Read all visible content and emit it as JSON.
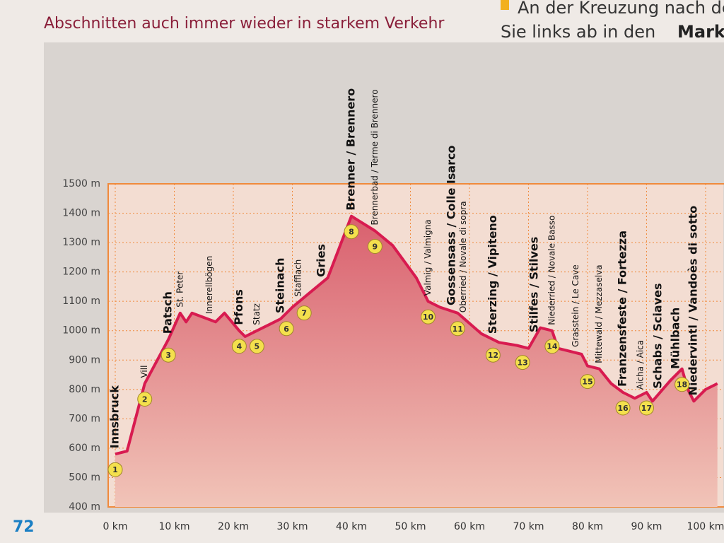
{
  "header": {
    "left": "Abschnitten auch immer wieder in starkem Verkehr",
    "right_top": "An der Kreuzung nach de",
    "right": "Sie links ab in den",
    "right_bold": "Markt"
  },
  "page_number": "72",
  "chart_data": {
    "type": "line",
    "x": [
      0,
      2,
      5,
      9,
      11,
      12,
      13,
      17,
      18.5,
      21,
      22,
      25,
      28,
      30,
      33,
      36,
      40,
      44,
      47,
      51,
      53,
      55,
      58,
      62,
      65,
      68,
      70,
      72,
      74,
      75,
      77,
      79,
      80,
      82,
      84,
      86,
      88,
      90,
      91,
      94,
      96,
      97,
      98,
      100,
      102
    ],
    "values": [
      580,
      590,
      820,
      970,
      1060,
      1030,
      1060,
      1030,
      1060,
      1000,
      980,
      1010,
      1040,
      1080,
      1130,
      1180,
      1390,
      1340,
      1290,
      1180,
      1100,
      1080,
      1060,
      990,
      960,
      950,
      940,
      1010,
      1000,
      940,
      930,
      920,
      880,
      870,
      820,
      790,
      770,
      790,
      760,
      830,
      870,
      800,
      760,
      800,
      820
    ],
    "color": "#d81b50",
    "xlim": [
      0,
      103
    ],
    "ylim": [
      400,
      1500
    ],
    "xticks": [
      {
        "value": 0,
        "label": "0 km"
      },
      {
        "value": 10,
        "label": "10 km"
      },
      {
        "value": 20,
        "label": "20 km"
      },
      {
        "value": 30,
        "label": "30 km"
      },
      {
        "value": 40,
        "label": "40 km"
      },
      {
        "value": 50,
        "label": "50 km"
      },
      {
        "value": 60,
        "label": "60 km"
      },
      {
        "value": 70,
        "label": "70 km"
      },
      {
        "value": 80,
        "label": "80 km"
      },
      {
        "value": 90,
        "label": "90 km"
      },
      {
        "value": 100,
        "label": "100 km"
      }
    ],
    "yticks": [
      {
        "value": 400,
        "label": "400 m"
      },
      {
        "value": 500,
        "label": "500 m"
      },
      {
        "value": 600,
        "label": "600 m"
      },
      {
        "value": 700,
        "label": "700 m"
      },
      {
        "value": 800,
        "label": "800 m"
      },
      {
        "value": 900,
        "label": "900 m"
      },
      {
        "value": 1000,
        "label": "1000 m"
      },
      {
        "value": 1100,
        "label": "1100 m"
      },
      {
        "value": 1200,
        "label": "1200 m"
      },
      {
        "value": 1300,
        "label": "1300 m"
      },
      {
        "value": 1400,
        "label": "1400 m"
      },
      {
        "value": 1500,
        "label": "1500 m"
      }
    ],
    "grid": true,
    "places": [
      {
        "name": "Innsbruck",
        "km": 0,
        "bold": true
      },
      {
        "name": "Vill",
        "km": 5,
        "bold": false
      },
      {
        "name": "Patsch",
        "km": 9,
        "bold": true
      },
      {
        "name": "St. Peter",
        "km": 11,
        "bold": false
      },
      {
        "name": "Innerellbögen",
        "km": 16,
        "bold": false
      },
      {
        "name": "Pfons",
        "km": 21,
        "bold": true
      },
      {
        "name": "Statz",
        "km": 24,
        "bold": false
      },
      {
        "name": "Steinach",
        "km": 28,
        "bold": true
      },
      {
        "name": "Stafflach",
        "km": 31,
        "bold": false
      },
      {
        "name": "Gries",
        "km": 35,
        "bold": true
      },
      {
        "name": "Brenner / Brennero",
        "km": 40,
        "bold": true
      },
      {
        "name": "Brennerbad / Terme di Brennero",
        "km": 44,
        "bold": false
      },
      {
        "name": "Valmig / Valmigna",
        "km": 53,
        "bold": false
      },
      {
        "name": "Gossensass / Colle Isarco",
        "km": 57,
        "bold": true
      },
      {
        "name": "Oberried / Novale di sopra",
        "km": 59,
        "bold": false
      },
      {
        "name": "Sterzing / Vipiteno",
        "km": 64,
        "bold": true
      },
      {
        "name": "Stilfes / Stilves",
        "km": 71,
        "bold": true
      },
      {
        "name": "Niederried / Novale Basso",
        "km": 74,
        "bold": false
      },
      {
        "name": "Grasstein / Le Cave",
        "km": 78,
        "bold": false
      },
      {
        "name": "Mittewald / Mezzaselva",
        "km": 82,
        "bold": false
      },
      {
        "name": "Franzensfeste / Fortezza",
        "km": 86,
        "bold": true
      },
      {
        "name": "Aicha / Aica",
        "km": 89,
        "bold": false
      },
      {
        "name": "Schabs / Sciaves",
        "km": 92,
        "bold": true
      },
      {
        "name": "Mühlbach",
        "km": 95,
        "bold": true
      },
      {
        "name": "Niedervintl / Vandoès di sotto",
        "km": 98,
        "bold": true
      }
    ],
    "markers": [
      {
        "label": "1",
        "km": 0
      },
      {
        "label": "2",
        "km": 5
      },
      {
        "label": "3",
        "km": 9
      },
      {
        "label": "4",
        "km": 21
      },
      {
        "label": "5",
        "km": 24
      },
      {
        "label": "6",
        "km": 29
      },
      {
        "label": "7",
        "km": 32
      },
      {
        "label": "8",
        "km": 40
      },
      {
        "label": "9",
        "km": 44
      },
      {
        "label": "10",
        "km": 53
      },
      {
        "label": "11",
        "km": 58
      },
      {
        "label": "12",
        "km": 64
      },
      {
        "label": "13",
        "km": 69
      },
      {
        "label": "14",
        "km": 74
      },
      {
        "label": "15",
        "km": 80
      },
      {
        "label": "16",
        "km": 86
      },
      {
        "label": "17",
        "km": 90
      },
      {
        "label": "18",
        "km": 96
      }
    ]
  }
}
